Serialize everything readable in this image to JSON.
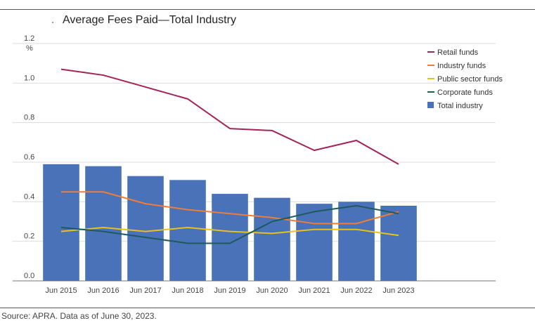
{
  "title": "Average Fees Paid—Total Industry",
  "source": "Source: APRA. Data as of June 30, 2023.",
  "chart_data": {
    "type": "bar",
    "title": "Average Fees Paid—Total Industry",
    "ylabel": "%",
    "ylim": [
      0,
      1.2
    ],
    "yticks": [
      "0.0",
      "0.2",
      "0.4",
      "0.6",
      "0.8",
      "1.0",
      "1.2"
    ],
    "categories": [
      "Jun 2015",
      "Jun 2016",
      "Jun 2017",
      "Jun 2018",
      "Jun 2019",
      "Jun 2020",
      "Jun 2021",
      "Jun 2022",
      "Jun 2023"
    ],
    "grid": true,
    "legend_position": "right",
    "series": [
      {
        "name": "Retail funds",
        "type": "line",
        "color": "#a3245a",
        "values": [
          1.07,
          1.04,
          0.98,
          0.92,
          0.77,
          0.76,
          0.66,
          0.71,
          0.59
        ]
      },
      {
        "name": "Industry funds",
        "type": "line",
        "color": "#ef7d37",
        "values": [
          0.45,
          0.45,
          0.39,
          0.36,
          0.34,
          0.32,
          0.29,
          0.29,
          0.35
        ]
      },
      {
        "name": "Public sector funds",
        "type": "line",
        "color": "#e8c21c",
        "values": [
          0.25,
          0.27,
          0.25,
          0.27,
          0.25,
          0.24,
          0.26,
          0.26,
          0.23
        ]
      },
      {
        "name": "Corporate funds",
        "type": "line",
        "color": "#1d5a5c",
        "values": [
          0.27,
          0.25,
          0.22,
          0.19,
          0.19,
          0.3,
          0.35,
          0.38,
          0.34
        ]
      },
      {
        "name": "Total industry",
        "type": "bar",
        "color": "#4a72b8",
        "values": [
          0.59,
          0.58,
          0.53,
          0.51,
          0.44,
          0.42,
          0.39,
          0.4,
          0.38
        ]
      }
    ]
  }
}
